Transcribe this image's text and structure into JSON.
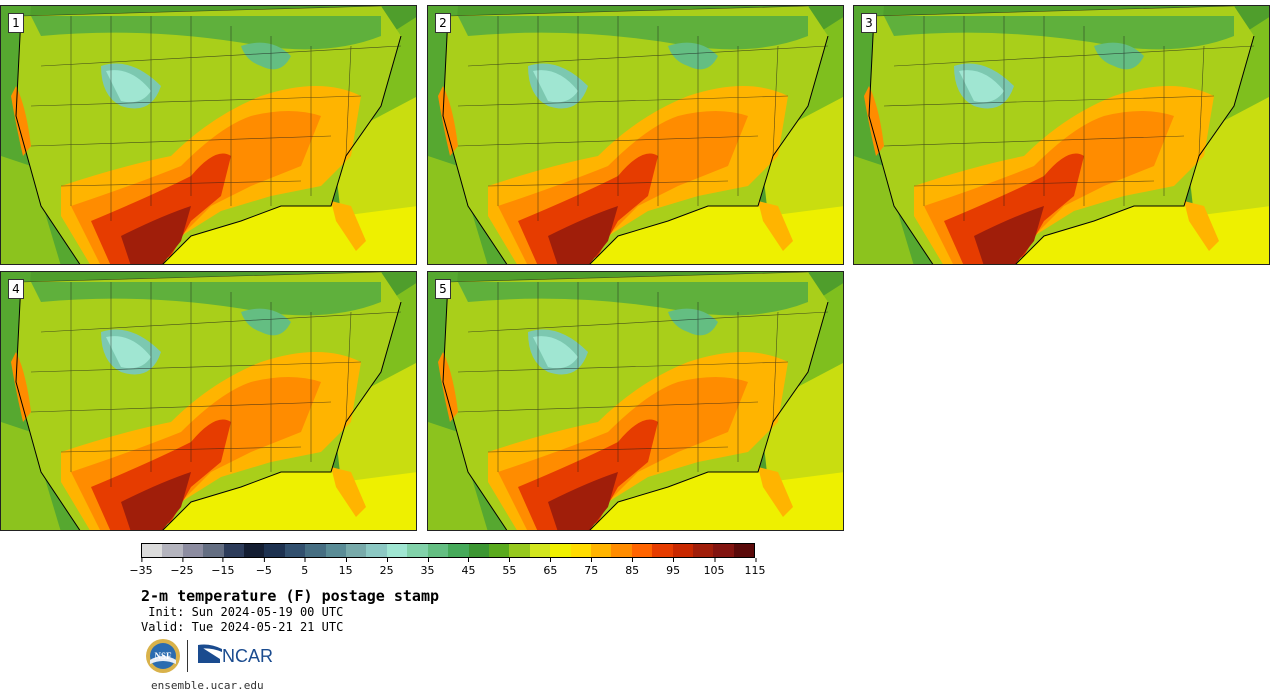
{
  "panels": [
    {
      "label": "1"
    },
    {
      "label": "2"
    },
    {
      "label": "3"
    },
    {
      "label": "4"
    },
    {
      "label": "5"
    }
  ],
  "colorbar": {
    "colors": [
      "#dcdcdc",
      "#b4b4be",
      "#8c8ca0",
      "#646e82",
      "#2d3c5a",
      "#141e32",
      "#1e3250",
      "#32506e",
      "#466e82",
      "#5a8c96",
      "#78aaaa",
      "#8cc8c3",
      "#a0e6d2",
      "#82d2aa",
      "#64be82",
      "#46aa5a",
      "#3c9632",
      "#5aaa1e",
      "#96c81e",
      "#d2e61e",
      "#f0f000",
      "#ffdc00",
      "#ffb400",
      "#ff8c00",
      "#ff6400",
      "#e63c00",
      "#c82800",
      "#a01e0a",
      "#821410",
      "#5a0a0a"
    ],
    "tick_labels": [
      "−35",
      "−25",
      "−15",
      "−5",
      "5",
      "15",
      "25",
      "35",
      "45",
      "55",
      "65",
      "75",
      "85",
      "95",
      "105",
      "115"
    ]
  },
  "title": "2-m temperature (F) postage stamp",
  "init_line": " Init: Sun 2024-05-19 00 UTC",
  "valid_line": "Valid: Tue 2024-05-21 21 UTC",
  "logos": {
    "nsf": "NSF",
    "ncar": "NCAR"
  },
  "url": "ensemble.ucar.edu"
}
